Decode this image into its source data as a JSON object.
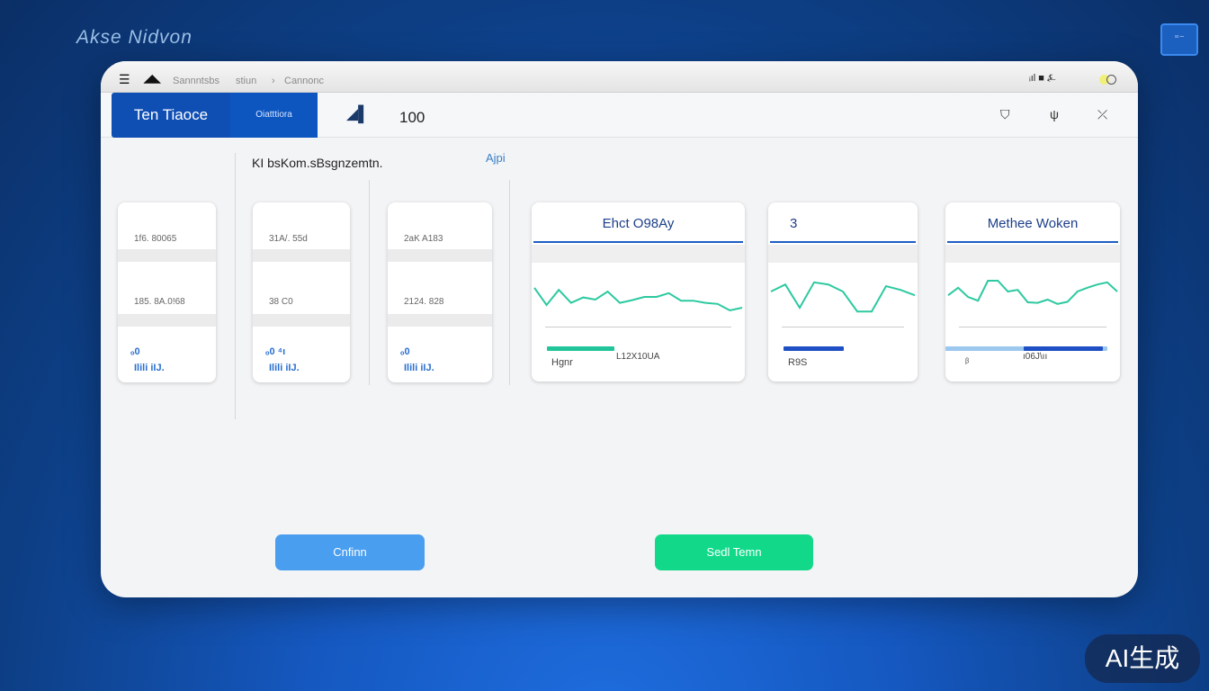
{
  "brand": "Akse Nidvon",
  "topbar": {
    "crumbs": [
      "Sannntsbs",
      "stiun",
      "›",
      "Cannonc"
    ],
    "status": "ᵢıl ■ ⍼"
  },
  "header": {
    "tab_main": "Ten Tiaoce",
    "tab_sub": "Oiatttiora",
    "value": "100"
  },
  "subtitle": "KI bsKom.sBsgnzemtn.",
  "api_link": "Ajpi",
  "stat_cards": [
    {
      "values": [
        "1f6. 80065",
        "185. 8A.0!68"
      ],
      "icon": "ₒ0",
      "link": "Ilili iIJ."
    },
    {
      "values": [
        "31A/. 55d",
        "38 C0"
      ],
      "icon": "ₒ0 ⁴ı",
      "link": "Ilili iIJ."
    },
    {
      "values": [
        "2aK A183",
        "2124. 828"
      ],
      "icon": "ₒ0",
      "link": "Ilili iIJ."
    }
  ],
  "chart_cards": [
    {
      "title": "Ehct O98Ay",
      "trend": [
        62,
        30,
        58,
        34,
        44,
        40,
        55,
        34,
        39,
        45,
        45,
        52,
        38,
        38,
        34,
        32,
        20,
        25
      ],
      "progress": 35,
      "bar_color": "#22c49a",
      "label": "Hgnr",
      "label2": "L12X10UA"
    },
    {
      "title": "3",
      "trend": [
        55,
        68,
        25,
        72,
        68,
        55,
        18,
        18,
        65,
        58,
        48
      ],
      "progress": 45,
      "bar_color": "#1f4fc4",
      "label": "R9S"
    },
    {
      "title": "Methee Woken",
      "trend": [
        48,
        62,
        45,
        38,
        75,
        75,
        55,
        58,
        35,
        34,
        40,
        32,
        36,
        55,
        62,
        68,
        72,
        55
      ],
      "progress": 55,
      "bar_color": "#1f4fc4",
      "label": "ᵝ",
      "label2": "ı06J\\ıı"
    }
  ],
  "buttons": {
    "confirm": "Cnfinn",
    "send": "Sedl Temn"
  },
  "colors": {
    "accent": "#0f4fb4",
    "confirm": "#4a9ef0",
    "send": "#12d98a",
    "line": "#2cc9a0"
  },
  "watermark": "AI生成"
}
